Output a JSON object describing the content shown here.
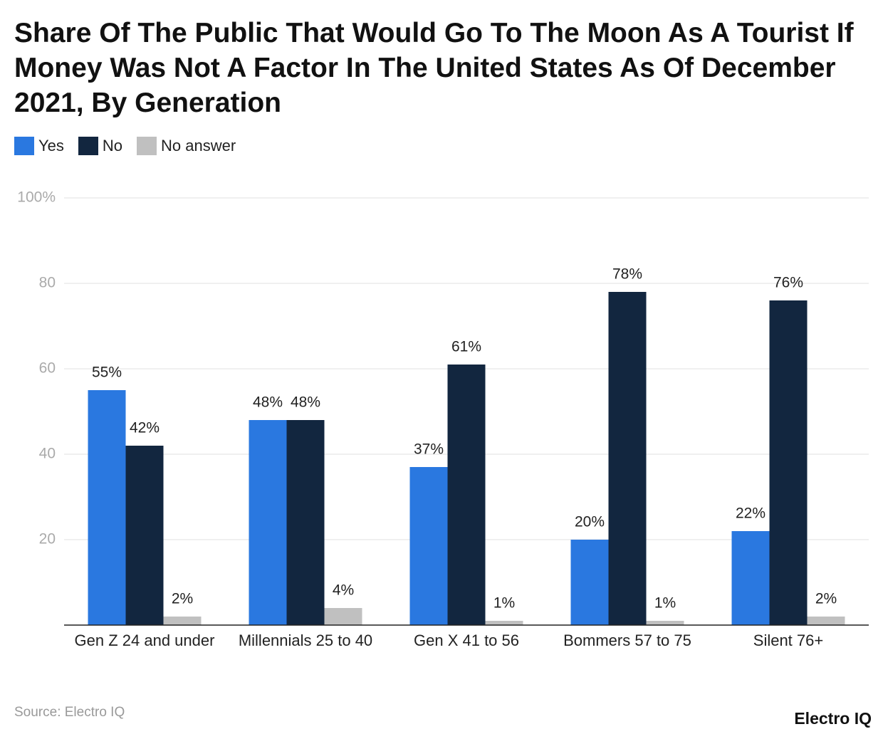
{
  "chart_data": {
    "type": "grouped_bar",
    "title": "Share Of The Public That Would Go To The Moon As A Tourist If Money Was Not A Factor In The United States As Of December 2021, By Generation",
    "categories": [
      "Gen Z 24 and under",
      "Millennials 25 to 40",
      "Gen X 41 to 56",
      "Bommers 57 to 75",
      "Silent 76+"
    ],
    "series": [
      {
        "name": "Yes",
        "color": "#2a78e0",
        "values": [
          55,
          48,
          37,
          20,
          22
        ],
        "value_labels": [
          "55%",
          "48%",
          "37%",
          "20%",
          "22%"
        ]
      },
      {
        "name": "No",
        "color": "#12263f",
        "values": [
          42,
          48,
          61,
          78,
          76
        ],
        "value_labels": [
          "42%",
          "48%",
          "61%",
          "78%",
          "76%"
        ]
      },
      {
        "name": "No answer",
        "color": "#c0c0c0",
        "values": [
          2,
          4,
          1,
          1,
          2
        ],
        "value_labels": [
          "2%",
          "4%",
          "1%",
          "1%",
          "2%"
        ]
      }
    ],
    "ylim": [
      0,
      100
    ],
    "yticks": [
      20,
      40,
      60,
      80,
      {
        "value": 100,
        "label": "100%"
      }
    ],
    "grid": true,
    "legend": "top-left",
    "source": "Source: Electro IQ",
    "logo": "Electro IQ"
  }
}
